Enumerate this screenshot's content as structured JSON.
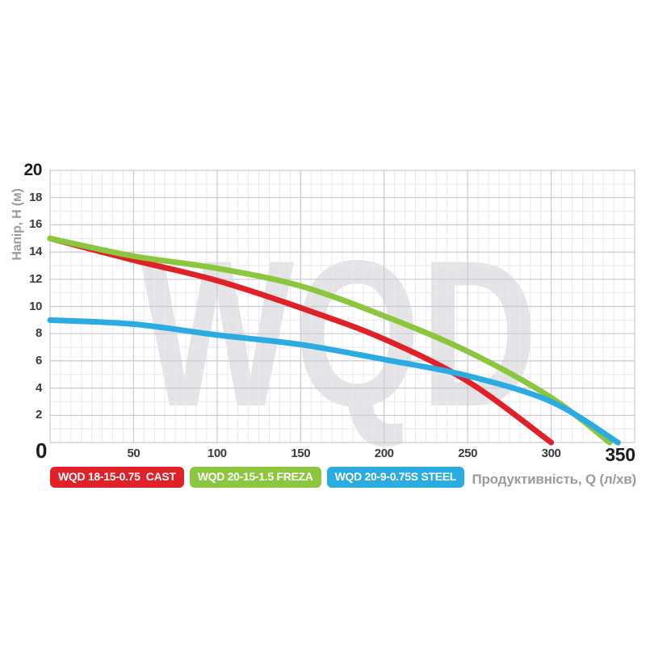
{
  "watermark": "WQD",
  "axes": {
    "y_title": "Напір, H (м)",
    "x_title": "Продуктивність, Q (л/хв)",
    "origin_label": "0",
    "y_max_label": "20",
    "x_max_label": "350",
    "y_ticks": [
      "18",
      "16",
      "14",
      "12",
      "10",
      "8",
      "6",
      "4",
      "2"
    ],
    "y_tick_values": [
      18,
      16,
      14,
      12,
      10,
      8,
      6,
      4,
      2
    ],
    "x_ticks": [
      "50",
      "100",
      "150",
      "200",
      "250",
      "300"
    ],
    "x_tick_values": [
      50,
      100,
      150,
      200,
      250,
      300
    ]
  },
  "legend": {
    "items": [
      {
        "label": "WQD 18-15-0.75  CAST",
        "color": "#e02128"
      },
      {
        "label": "WQD 20-15-1.5 FREZA",
        "color": "#8cc63f"
      },
      {
        "label": "WQD 20-9-0.75S STEEL",
        "color": "#2aabe2"
      }
    ]
  },
  "colors": {
    "grid_minor": "#e8e8ee",
    "grid_major": "#c9c9d3",
    "watermark": "#e4e4e7"
  },
  "chart_data": {
    "type": "line",
    "title": "",
    "xlabel": "Продуктивність, Q (л/хв)",
    "ylabel": "Напір, H (м)",
    "xlim": [
      0,
      350
    ],
    "ylim": [
      0,
      20
    ],
    "x_major_step": 50,
    "y_major_step": 2,
    "grid": true,
    "legend_position": "bottom",
    "watermark_text": "WQD",
    "series": [
      {
        "name": "WQD 18-15-0.75 CAST",
        "color": "#e02128",
        "points": [
          [
            0,
            15
          ],
          [
            50,
            13.4
          ],
          [
            100,
            11.9
          ],
          [
            150,
            9.9
          ],
          [
            200,
            7.6
          ],
          [
            250,
            4.5
          ],
          [
            300,
            0
          ]
        ]
      },
      {
        "name": "WQD 20-15-1.5 FREZA",
        "color": "#8cc63f",
        "points": [
          [
            0,
            15
          ],
          [
            50,
            13.7
          ],
          [
            100,
            12.8
          ],
          [
            150,
            11.5
          ],
          [
            200,
            9.3
          ],
          [
            250,
            6.7
          ],
          [
            300,
            3.3
          ],
          [
            335,
            0
          ]
        ]
      },
      {
        "name": "WQD 20-9-0.75S STEEL",
        "color": "#2aabe2",
        "points": [
          [
            0,
            9
          ],
          [
            50,
            8.7
          ],
          [
            100,
            7.9
          ],
          [
            150,
            7.2
          ],
          [
            200,
            6.1
          ],
          [
            250,
            4.9
          ],
          [
            300,
            3.0
          ],
          [
            340,
            0
          ]
        ]
      }
    ]
  }
}
